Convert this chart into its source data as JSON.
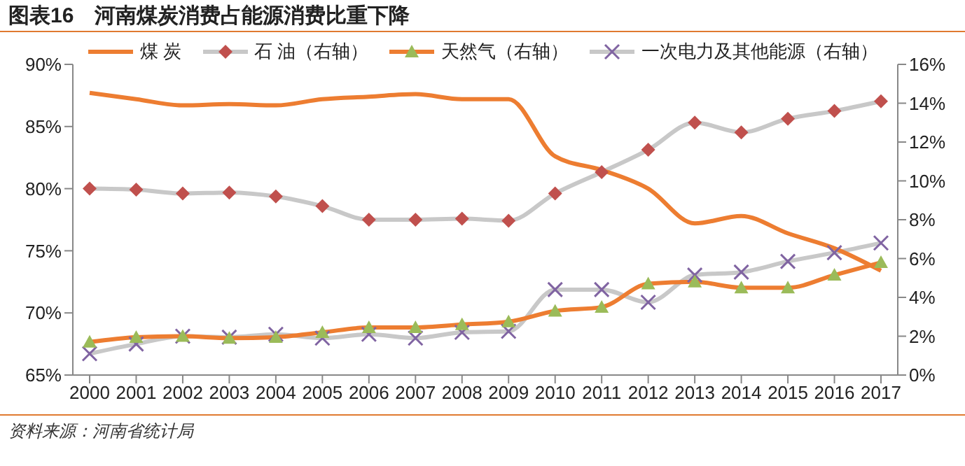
{
  "chart_data": {
    "type": "line",
    "title": "图表16　河南煤炭消费占能源消费比重下降",
    "categories": [
      "2000",
      "2001",
      "2002",
      "2003",
      "2004",
      "2005",
      "2006",
      "2007",
      "2008",
      "2009",
      "2010",
      "2011",
      "2012",
      "2013",
      "2014",
      "2015",
      "2016",
      "2017"
    ],
    "series": [
      {
        "name": "煤 炭",
        "color": "#ed7d31",
        "marker": "none",
        "values": [
          87.7,
          87.2,
          86.7,
          86.8,
          86.7,
          87.2,
          87.4,
          87.6,
          87.2,
          87.2,
          82.6,
          81.5,
          80.0,
          77.2,
          77.8,
          76.4,
          75.2,
          73.4
        ]
      },
      {
        "name": "石  油（右轴）",
        "axis": "y2",
        "color": "#c8c8c8",
        "marker": "diamond",
        "colors": [
          "#c0504d",
          "#c0504d",
          "#c0504d",
          "#c0504d",
          "#c0504d",
          "#c0504d",
          "#c0504d",
          "#c0504d",
          "#c0504d",
          "#c0504d",
          "#c0504d",
          "#c0504d",
          "#c0504d",
          "#c0504d",
          "#c0504d",
          "#c0504d",
          "#c0504d",
          "#c0504d"
        ],
        "values": [
          9.6,
          9.55,
          9.35,
          9.4,
          9.2,
          8.7,
          8.0,
          8.0,
          8.05,
          7.95,
          9.35,
          10.45,
          11.6,
          13.0,
          12.5,
          13.2,
          13.6,
          14.1
        ]
      },
      {
        "name": "天然气（右轴）",
        "axis": "y2",
        "color": "#ed7d31",
        "marker": "triangle",
        "colors": [
          "#9bbb59",
          "#9bbb59",
          "#9bbb59",
          "#9bbb59",
          "#9bbb59",
          "#9bbb59",
          "#9bbb59",
          "#9bbb59",
          "#9bbb59",
          "#9bbb59",
          "#9bbb59",
          "#9bbb59",
          "#9bbb59",
          "#9bbb59",
          "#9bbb59",
          "#9bbb59",
          "#9bbb59",
          "#9bbb59"
        ],
        "values": [
          1.7,
          1.95,
          2.0,
          1.9,
          1.95,
          2.2,
          2.45,
          2.45,
          2.6,
          2.75,
          3.3,
          3.5,
          4.7,
          4.8,
          4.5,
          4.5,
          5.15,
          5.8
        ]
      },
      {
        "name": "一次电力及其他能源（右轴）",
        "axis": "y2",
        "color": "#c8c8c8",
        "marker": "cross",
        "colors": [
          "#8064a2",
          "#8064a2",
          "#8064a2",
          "#8064a2",
          "#8064a2",
          "#8064a2",
          "#8064a2",
          "#8064a2",
          "#8064a2",
          "#8064a2",
          "#8064a2",
          "#8064a2",
          "#8064a2",
          "#8064a2",
          "#8064a2",
          "#8064a2",
          "#8064a2",
          "#8064a2"
        ],
        "values": [
          1.1,
          1.6,
          2.0,
          1.95,
          2.1,
          1.9,
          2.1,
          1.9,
          2.2,
          2.25,
          4.4,
          4.4,
          3.75,
          5.15,
          5.3,
          5.85,
          6.3,
          6.8
        ]
      }
    ],
    "ylim": [
      65,
      90
    ],
    "yticks": [
      {
        "value": 65,
        "label": "65%"
      },
      {
        "value": 70,
        "label": "70%"
      },
      {
        "value": 75,
        "label": "75%"
      },
      {
        "value": 80,
        "label": "80%"
      },
      {
        "value": 85,
        "label": "85%"
      },
      {
        "value": 90,
        "label": "90%"
      }
    ],
    "y2lim": [
      0,
      16
    ],
    "y2ticks": [
      {
        "value": 0,
        "label": "0%"
      },
      {
        "value": 2,
        "label": "2%"
      },
      {
        "value": 4,
        "label": "4%"
      },
      {
        "value": 6,
        "label": "6%"
      },
      {
        "value": 8,
        "label": "8%"
      },
      {
        "value": 10,
        "label": "10%"
      },
      {
        "value": 12,
        "label": "12%"
      },
      {
        "value": 14,
        "label": "14%"
      },
      {
        "value": 16,
        "label": "16%"
      }
    ],
    "grid": false,
    "legend": "top",
    "annotations": [
      "资料来源：河南省统计局"
    ]
  }
}
